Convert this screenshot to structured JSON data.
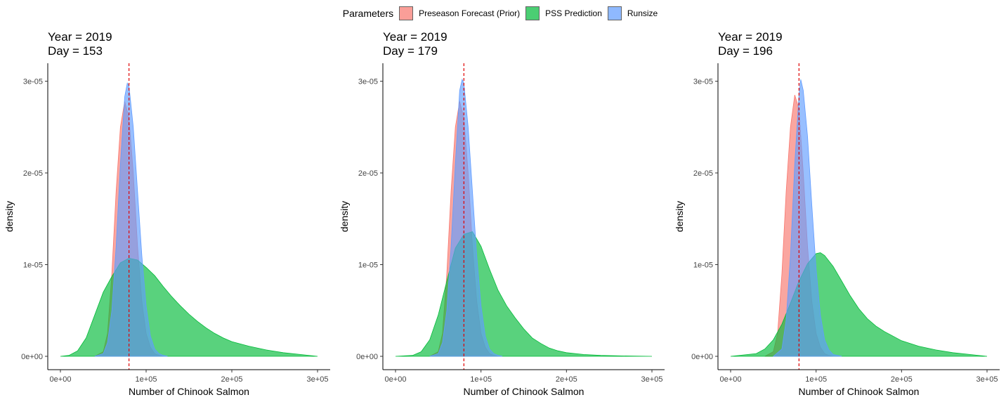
{
  "legend": {
    "title": "Parameters",
    "items": [
      {
        "label": "Preseason Forecast (Prior)",
        "color": "#F8766D"
      },
      {
        "label": "PSS Prediction",
        "color": "#00BA38"
      },
      {
        "label": "Runsize",
        "color": "#619CFF"
      }
    ]
  },
  "chart_data": [
    {
      "type": "area",
      "title": "Year = 2019\n Day = 153",
      "xlabel": "Number of Chinook Salmon",
      "ylabel": "density",
      "xlim": [
        0,
        300000
      ],
      "ylim": [
        0,
        3.15e-05
      ],
      "x_ticks": [
        "0e+00",
        "1e+05",
        "2e+05",
        "3e+05"
      ],
      "y_ticks": [
        "0e+00",
        "1e-05",
        "2e-05",
        "3e-05"
      ],
      "vline": 80000,
      "grid": false,
      "series": [
        {
          "name": "Preseason Forecast (Prior)",
          "color": "#F8766D",
          "x": [
            40000,
            50000,
            55000,
            60000,
            65000,
            70000,
            75000,
            80000,
            85000,
            90000,
            95000,
            100000,
            105000,
            110000,
            115000,
            120000
          ],
          "y": [
            0,
            5e-07,
            2.5e-06,
            9e-06,
            1.8e-05,
            2.5e-05,
            2.78e-05,
            2.6e-05,
            2e-05,
            1.2e-05,
            6e-06,
            2.5e-06,
            1e-06,
            3e-07,
            1e-07,
            0
          ]
        },
        {
          "name": "PSS Prediction",
          "color": "#00BA38",
          "x": [
            0,
            10000,
            20000,
            30000,
            40000,
            50000,
            60000,
            70000,
            80000,
            90000,
            100000,
            110000,
            120000,
            130000,
            140000,
            150000,
            160000,
            170000,
            180000,
            190000,
            200000,
            220000,
            240000,
            260000,
            280000,
            300000
          ],
          "y": [
            0,
            1e-07,
            6e-07,
            2e-06,
            4.5e-06,
            7e-06,
            8.7e-06,
            1.02e-05,
            1.07e-05,
            1.05e-05,
            9.7e-06,
            8.8e-06,
            7.6e-06,
            6.5e-06,
            5.5e-06,
            4.6e-06,
            3.8e-06,
            3.1e-06,
            2.5e-06,
            2e-06,
            1.6e-06,
            1.1e-06,
            7e-07,
            4e-07,
            2e-07,
            0
          ]
        },
        {
          "name": "Runsize",
          "color": "#619CFF",
          "x": [
            40000,
            50000,
            55000,
            60000,
            65000,
            70000,
            75000,
            78000,
            80000,
            85000,
            90000,
            95000,
            100000,
            105000,
            110000,
            115000,
            120000,
            125000
          ],
          "y": [
            0,
            3e-07,
            1.5e-06,
            5e-06,
            1.2e-05,
            2.1e-05,
            2.83e-05,
            2.98e-05,
            2.95e-05,
            2.5e-05,
            1.8e-05,
            1.1e-05,
            5.5e-06,
            2.2e-06,
            8e-07,
            3e-07,
            1e-07,
            0
          ]
        }
      ]
    },
    {
      "type": "area",
      "title": "Year = 2019\n Day = 179",
      "xlabel": "Number of Chinook Salmon",
      "ylabel": "density",
      "xlim": [
        0,
        300000
      ],
      "ylim": [
        0,
        3.15e-05
      ],
      "x_ticks": [
        "0e+00",
        "1e+05",
        "2e+05",
        "3e+05"
      ],
      "y_ticks": [
        "0e+00",
        "1e-05",
        "2e-05",
        "3e-05"
      ],
      "vline": 80000,
      "grid": false,
      "series": [
        {
          "name": "Preseason Forecast (Prior)",
          "color": "#F8766D",
          "x": [
            40000,
            50000,
            55000,
            60000,
            65000,
            70000,
            75000,
            80000,
            85000,
            90000,
            95000,
            100000,
            105000,
            110000,
            115000,
            120000
          ],
          "y": [
            0,
            5e-07,
            2.5e-06,
            9e-06,
            1.8e-05,
            2.5e-05,
            2.78e-05,
            2.6e-05,
            2e-05,
            1.2e-05,
            6e-06,
            2.5e-06,
            1e-06,
            3e-07,
            1e-07,
            0
          ]
        },
        {
          "name": "PSS Prediction",
          "color": "#00BA38",
          "x": [
            0,
            20000,
            30000,
            40000,
            50000,
            60000,
            70000,
            80000,
            90000,
            100000,
            110000,
            120000,
            130000,
            140000,
            150000,
            160000,
            170000,
            180000,
            190000,
            200000,
            220000,
            240000,
            260000,
            280000,
            300000
          ],
          "y": [
            0,
            1e-07,
            5e-07,
            1.8e-06,
            4.5e-06,
            8.2e-06,
            1.18e-05,
            1.33e-05,
            1.36e-05,
            1.2e-05,
            9.5e-06,
            7.2e-06,
            5.5e-06,
            4.2e-06,
            3e-06,
            2e-06,
            1.4e-06,
            9e-07,
            6e-07,
            4e-07,
            2e-07,
            1e-07,
            5e-08,
            2e-08,
            0
          ]
        },
        {
          "name": "Runsize",
          "color": "#619CFF",
          "x": [
            40000,
            50000,
            55000,
            60000,
            65000,
            70000,
            75000,
            78000,
            80000,
            85000,
            90000,
            95000,
            100000,
            105000,
            110000,
            115000,
            120000,
            125000
          ],
          "y": [
            0,
            3e-07,
            1.5e-06,
            5e-06,
            1.2e-05,
            2.1e-05,
            2.9e-05,
            3.02e-05,
            2.98e-05,
            2.5e-05,
            1.8e-05,
            1.1e-05,
            5.5e-06,
            2.2e-06,
            8e-07,
            3e-07,
            1e-07,
            0
          ]
        }
      ]
    },
    {
      "type": "area",
      "title": "Year = 2019\n Day = 196",
      "xlabel": "Number of Chinook Salmon",
      "ylabel": "density",
      "xlim": [
        0,
        300000
      ],
      "ylim": [
        0,
        3.15e-05
      ],
      "x_ticks": [
        "0e+00",
        "1e+05",
        "2e+05",
        "3e+05"
      ],
      "y_ticks": [
        "0e+00",
        "1e-05",
        "2e-05",
        "3e-05"
      ],
      "vline": 80000,
      "grid": false,
      "series": [
        {
          "name": "Preseason Forecast (Prior)",
          "color": "#F8766D",
          "x": [
            40000,
            50000,
            55000,
            60000,
            65000,
            70000,
            75000,
            80000,
            85000,
            90000,
            95000,
            100000,
            105000,
            110000,
            115000,
            120000
          ],
          "y": [
            0,
            5e-07,
            2.5e-06,
            9e-06,
            1.8e-05,
            2.5e-05,
            2.85e-05,
            2.7e-05,
            2e-05,
            1.2e-05,
            6e-06,
            2.5e-06,
            1e-06,
            3e-07,
            1e-07,
            0
          ]
        },
        {
          "name": "PSS Prediction",
          "color": "#00BA38",
          "x": [
            0,
            30000,
            40000,
            50000,
            60000,
            70000,
            80000,
            90000,
            100000,
            105000,
            110000,
            120000,
            130000,
            140000,
            150000,
            160000,
            170000,
            180000,
            190000,
            200000,
            220000,
            240000,
            260000,
            280000,
            300000
          ],
          "y": [
            0,
            3e-07,
            8e-07,
            1.8e-06,
            3.5e-06,
            5.8e-06,
            8.2e-06,
            1.01e-05,
            1.12e-05,
            1.13e-05,
            1.1e-05,
            9.8e-06,
            8.2e-06,
            6.6e-06,
            5.2e-06,
            4.1e-06,
            3.3e-06,
            2.7e-06,
            2.2e-06,
            1.7e-06,
            1.1e-06,
            7e-07,
            4e-07,
            2e-07,
            0
          ]
        },
        {
          "name": "Runsize",
          "color": "#619CFF",
          "x": [
            50000,
            60000,
            65000,
            70000,
            75000,
            80000,
            82000,
            85000,
            90000,
            95000,
            100000,
            105000,
            110000,
            115000,
            120000,
            125000,
            130000
          ],
          "y": [
            0,
            8e-07,
            4e-06,
            1.1e-05,
            2.1e-05,
            2.85e-05,
            3.02e-05,
            2.9e-05,
            2.4e-05,
            1.65e-05,
            9.5e-06,
            4.5e-06,
            1.8e-06,
            7e-07,
            2e-07,
            1e-07,
            0
          ]
        }
      ]
    }
  ]
}
